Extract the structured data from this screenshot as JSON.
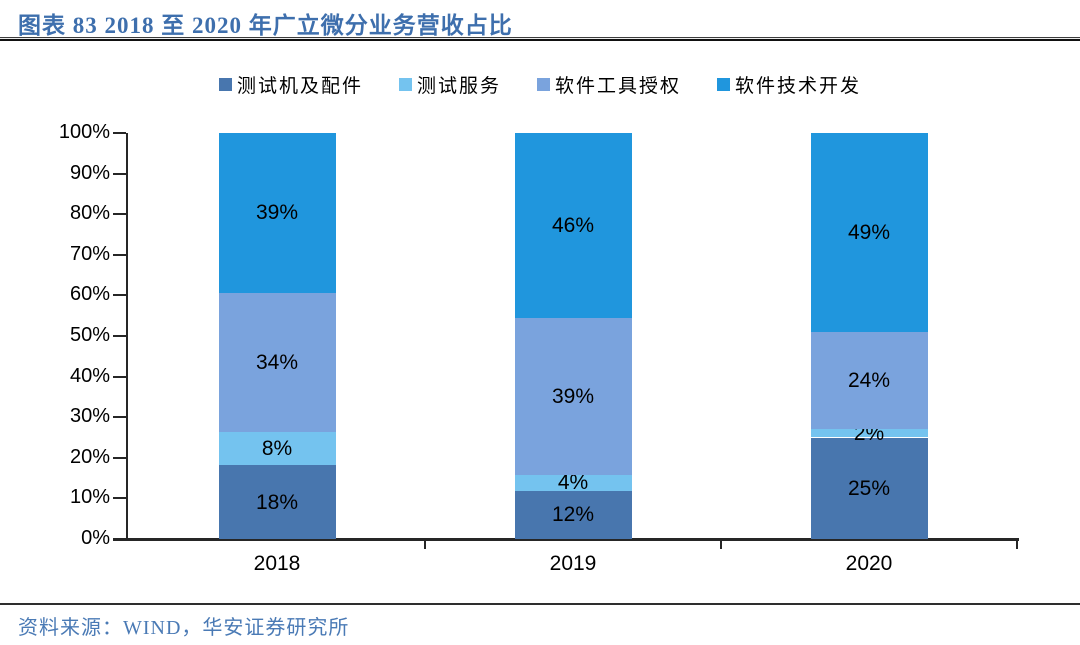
{
  "title": "图表  83 2018 至 2020 年广立微分业务营收占比",
  "source": "资料来源：WIND，华安证券研究所",
  "colors": {
    "title_blue": "#3E6FAD",
    "source_blue": "#4A7AB5",
    "axis": "#262626",
    "label": "#000000"
  },
  "chart_data": {
    "type": "bar",
    "stacked": true,
    "orientation": "vertical",
    "categories": [
      "2018",
      "2019",
      "2020"
    ],
    "series": [
      {
        "name": "测试机及配件",
        "color": "#4876AE",
        "values": [
          18,
          12,
          25
        ]
      },
      {
        "name": "测试服务",
        "color": "#74C3EF",
        "values": [
          8,
          4,
          2
        ]
      },
      {
        "name": "软件工具授权",
        "color": "#7AA3DD",
        "values": [
          34,
          39,
          24
        ]
      },
      {
        "name": "软件技术开发",
        "color": "#2096DD",
        "values": [
          39,
          46,
          49
        ]
      }
    ],
    "value_suffix": "%",
    "ylim": [
      0,
      100
    ],
    "y_tick_labels": [
      "0%",
      "10%",
      "20%",
      "30%",
      "40%",
      "50%",
      "60%",
      "70%",
      "80%",
      "90%",
      "100%"
    ],
    "grid": false,
    "legend_position": "top"
  }
}
